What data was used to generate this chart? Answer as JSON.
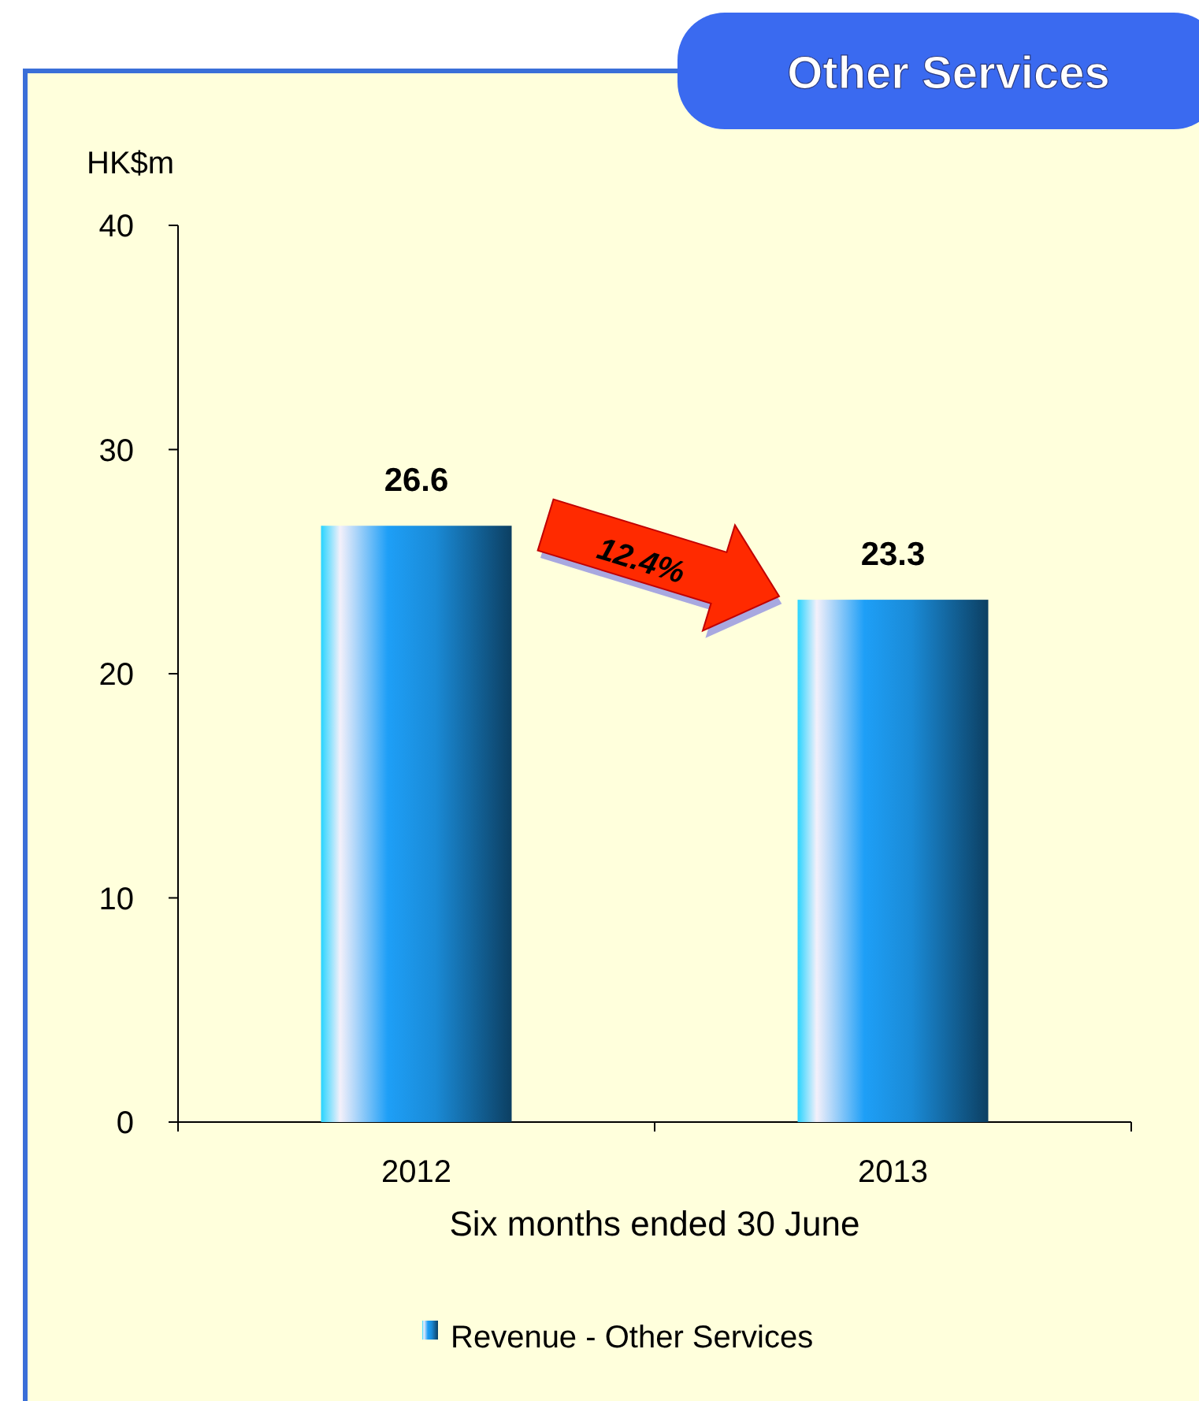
{
  "chart_data": {
    "type": "bar",
    "title": "Other Services",
    "ylabel": "HK$m",
    "xlabel": "Six months ended 30 June",
    "categories": [
      "2012",
      "2013"
    ],
    "series": [
      {
        "name": "Revenue - Other Services",
        "color": "#1a8ad6",
        "values": [
          26.6,
          23.3
        ]
      }
    ],
    "ylim": [
      0,
      40
    ],
    "yticks": [
      0,
      10,
      20,
      30,
      40
    ],
    "data_labels": true,
    "legend": "bottom",
    "grid": false,
    "annotations": [
      "12.4%"
    ]
  }
}
